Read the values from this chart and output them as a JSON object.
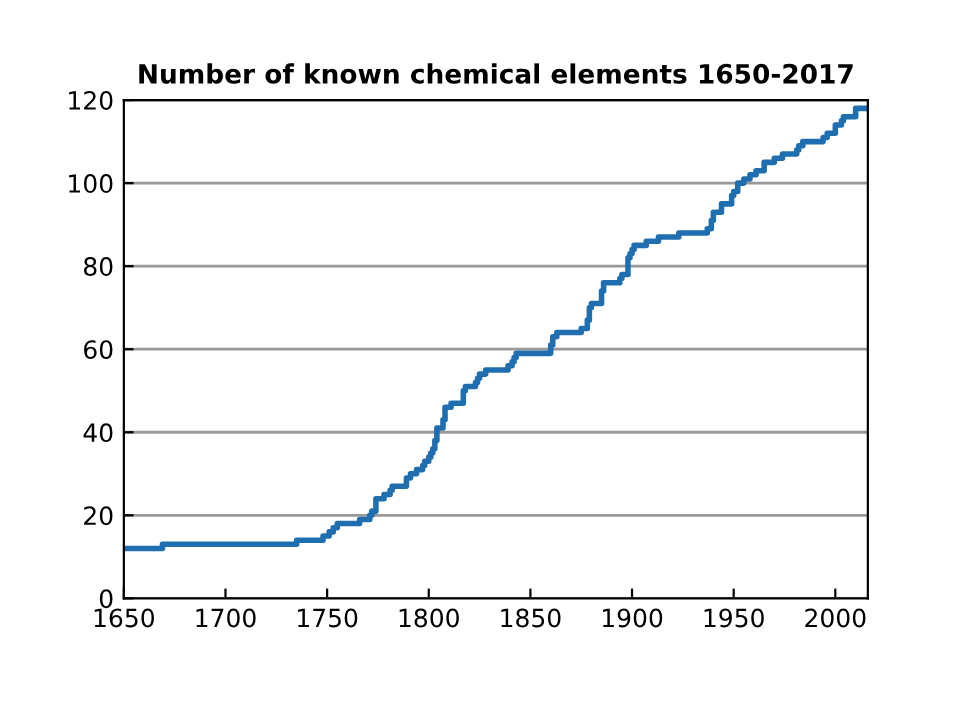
{
  "chart_data": {
    "type": "step",
    "title": "Number of known chemical elements 1650-2017",
    "series": [
      {
        "color": "#1f6eb0",
        "x": [
          1650,
          1669,
          1735,
          1748,
          1751,
          1753,
          1755,
          1766,
          1771,
          1772,
          1774,
          1778,
          1781,
          1782,
          1789,
          1791,
          1794,
          1797,
          1798,
          1800,
          1801,
          1802,
          1803,
          1804,
          1807,
          1808,
          1811,
          1817,
          1818,
          1823,
          1824,
          1825,
          1828,
          1839,
          1841,
          1842,
          1843,
          1860,
          1861,
          1863,
          1875,
          1878,
          1879,
          1880,
          1885,
          1886,
          1894,
          1895,
          1898,
          1899,
          1900,
          1901,
          1907,
          1913,
          1923,
          1937,
          1939,
          1940,
          1944,
          1949,
          1950,
          1952,
          1955,
          1958,
          1961,
          1965,
          1970,
          1974,
          1981,
          1982,
          1984,
          1994,
          1996,
          2000,
          2003,
          2004,
          2010,
          2016
        ],
        "values": [
          12,
          13,
          14,
          15,
          16,
          17,
          18,
          19,
          20,
          21,
          24,
          25,
          26,
          27,
          29,
          30,
          31,
          32,
          33,
          34,
          35,
          36,
          38,
          41,
          43,
          46,
          47,
          50,
          51,
          52,
          53,
          54,
          55,
          56,
          57,
          58,
          59,
          61,
          63,
          64,
          65,
          67,
          70,
          71,
          74,
          76,
          77,
          78,
          82,
          83,
          84,
          85,
          86,
          87,
          88,
          89,
          91,
          93,
          95,
          97,
          98,
          100,
          101,
          102,
          103,
          105,
          106,
          107,
          108,
          109,
          110,
          111,
          112,
          114,
          115,
          116,
          118,
          118
        ]
      }
    ],
    "xlim": [
      1650,
      2016
    ],
    "xticks": [
      1650,
      1700,
      1750,
      1800,
      1850,
      1900,
      1950,
      2000
    ],
    "ylim": [
      0,
      120
    ],
    "yticks": [
      0,
      20,
      40,
      60,
      80,
      100,
      120
    ],
    "grid": "y",
    "line_style": "solid",
    "marker": "none"
  }
}
